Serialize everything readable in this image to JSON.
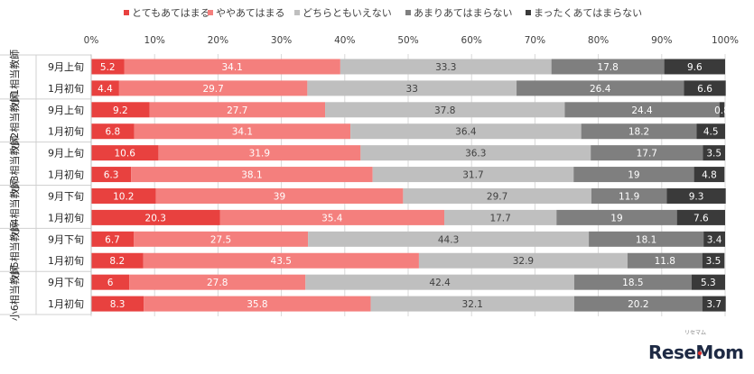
{
  "chart_data": {
    "type": "bar",
    "orientation": "horizontal",
    "stacked": "percent",
    "xlim": [
      0,
      100
    ],
    "x_ticks": [
      "0%",
      "10%",
      "20%",
      "30%",
      "40%",
      "50%",
      "60%",
      "70%",
      "80%",
      "90%",
      "100%"
    ],
    "legend_position": "top",
    "grid": true,
    "series": [
      {
        "name": "とてもあてはまる",
        "color": "#e8413f",
        "label_color": "#ffffff",
        "values": [
          5.2,
          4.4,
          9.2,
          6.8,
          10.6,
          6.3,
          10.2,
          20.3,
          6.7,
          8.2,
          6,
          8.3
        ]
      },
      {
        "name": "ややあてはまる",
        "color": "#f47f7d",
        "label_color": "#ffffff",
        "values": [
          34.1,
          29.7,
          27.7,
          34.1,
          31.9,
          38.1,
          39,
          35.4,
          27.5,
          43.5,
          27.8,
          35.8
        ]
      },
      {
        "name": "どちらともいえない",
        "color": "#bfbfbf",
        "label_color": "#404040",
        "values": [
          33.3,
          33,
          37.8,
          36.4,
          36.3,
          31.7,
          29.7,
          17.7,
          44.3,
          32.9,
          42.4,
          32.1
        ]
      },
      {
        "name": "あまりあてはまらない",
        "color": "#7f7f7f",
        "label_color": "#ffffff",
        "values": [
          17.8,
          26.4,
          24.4,
          18.2,
          17.7,
          19,
          11.9,
          19,
          18.1,
          11.8,
          18.5,
          20.2
        ]
      },
      {
        "name": "まったくあてはまらない",
        "color": "#3a3a3a",
        "label_color": "#ffffff",
        "values": [
          9.6,
          6.6,
          0.8,
          4.5,
          3.5,
          4.8,
          9.3,
          7.6,
          3.4,
          3.5,
          5.3,
          3.7
        ]
      }
    ],
    "categories": [
      "9月上旬",
      "1月初旬",
      "9月上旬",
      "1月初旬",
      "9月上旬",
      "1月初旬",
      "9月下旬",
      "1月初旬",
      "9月下旬",
      "1月初旬",
      "9月下旬",
      "1月初旬"
    ],
    "groups": [
      {
        "label": "小1相当教師",
        "rows": [
          0,
          1
        ]
      },
      {
        "label": "小2相当教師",
        "rows": [
          2,
          3
        ]
      },
      {
        "label": "小3相当教師",
        "rows": [
          4,
          5
        ]
      },
      {
        "label": "小4相当教師",
        "rows": [
          6,
          7
        ]
      },
      {
        "label": "小5相当教師",
        "rows": [
          8,
          9
        ]
      },
      {
        "label": "小6相当教師",
        "rows": [
          10,
          11
        ]
      }
    ]
  },
  "watermark": {
    "text": "ReseMom",
    "sub": "リセマム",
    "color": "#1e2a44",
    "accent": "#e0312d"
  }
}
